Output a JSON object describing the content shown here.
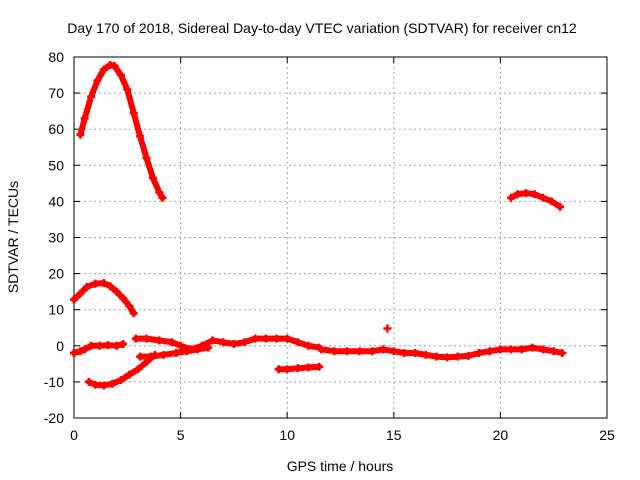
{
  "chart_data": {
    "type": "scatter",
    "title": "Day 170 of 2018, Sidereal Day-to-day VTEC variation (SDTVAR) for receiver cn12",
    "xlabel": "GPS time / hours",
    "ylabel": "SDTVAR / TECUs",
    "xlim": [
      0,
      25
    ],
    "ylim": [
      -20,
      80
    ],
    "xticks": [
      0,
      5,
      10,
      15,
      20,
      25
    ],
    "yticks": [
      -20,
      -10,
      0,
      10,
      20,
      30,
      40,
      50,
      60,
      70,
      80
    ],
    "grid": true,
    "marker_color": "#ff0000",
    "series": [
      {
        "name": "arc-high-peak",
        "points": [
          [
            0.3,
            58.5
          ],
          [
            0.5,
            63
          ],
          [
            0.8,
            69
          ],
          [
            1.1,
            73.5
          ],
          [
            1.4,
            76.5
          ],
          [
            1.7,
            77.8
          ],
          [
            1.9,
            77.5
          ],
          [
            2.2,
            75
          ],
          [
            2.5,
            71
          ],
          [
            2.8,
            64.5
          ],
          [
            3.1,
            58
          ],
          [
            3.4,
            52
          ],
          [
            3.7,
            46.5
          ],
          [
            4.0,
            42.5
          ],
          [
            4.15,
            41
          ]
        ]
      },
      {
        "name": "arc-morning-mid",
        "points": [
          [
            0.0,
            12.8
          ],
          [
            0.3,
            14.5
          ],
          [
            0.6,
            16.3
          ],
          [
            1.0,
            17.2
          ],
          [
            1.4,
            17.4
          ],
          [
            1.7,
            16.5
          ],
          [
            2.0,
            15
          ],
          [
            2.3,
            13.2
          ],
          [
            2.6,
            11
          ],
          [
            2.8,
            9
          ]
        ]
      },
      {
        "name": "arc-morning-zero",
        "points": [
          [
            0.0,
            -2
          ],
          [
            0.3,
            -1.5
          ],
          [
            0.5,
            -1
          ],
          [
            0.8,
            0
          ],
          [
            1.2,
            0
          ],
          [
            1.6,
            0.2
          ],
          [
            2.0,
            0
          ],
          [
            2.3,
            0.5
          ]
        ]
      },
      {
        "name": "arc-morning-neg",
        "points": [
          [
            0.7,
            -10
          ],
          [
            1.0,
            -10.8
          ],
          [
            1.4,
            -11
          ],
          [
            1.8,
            -10.5
          ],
          [
            2.2,
            -9.5
          ],
          [
            2.6,
            -8
          ],
          [
            3.0,
            -6.5
          ],
          [
            3.4,
            -4.5
          ],
          [
            3.8,
            -2.5
          ]
        ]
      },
      {
        "name": "arc-mid-zero",
        "points": [
          [
            2.9,
            2
          ],
          [
            3.4,
            2
          ],
          [
            4.0,
            1.5
          ],
          [
            4.6,
            1
          ],
          [
            5.0,
            0
          ],
          [
            5.5,
            -1
          ],
          [
            6.0,
            0
          ],
          [
            6.5,
            1.5
          ],
          [
            7.0,
            1
          ],
          [
            7.5,
            0.5
          ],
          [
            8.0,
            1
          ],
          [
            8.5,
            2
          ],
          [
            9.0,
            2
          ],
          [
            9.5,
            2
          ],
          [
            10.0,
            2
          ],
          [
            10.5,
            1
          ],
          [
            11.0,
            0
          ],
          [
            11.5,
            -0.5
          ]
        ]
      },
      {
        "name": "arc-mid-lower",
        "points": [
          [
            3.1,
            -3
          ],
          [
            3.6,
            -3
          ],
          [
            4.2,
            -2.5
          ],
          [
            4.8,
            -2
          ],
          [
            5.3,
            -1.5
          ],
          [
            5.8,
            -1
          ],
          [
            6.3,
            -0.5
          ]
        ]
      },
      {
        "name": "arc-late-zero",
        "points": [
          [
            11.6,
            -1
          ],
          [
            12.2,
            -1.5
          ],
          [
            12.8,
            -1.5
          ],
          [
            13.4,
            -1.5
          ],
          [
            14.0,
            -1.5
          ],
          [
            14.5,
            -1
          ],
          [
            15.0,
            -1.5
          ],
          [
            15.5,
            -2
          ],
          [
            16.0,
            -2
          ],
          [
            16.5,
            -2.5
          ],
          [
            17.0,
            -3
          ],
          [
            17.5,
            -3.2
          ],
          [
            18.0,
            -3
          ],
          [
            18.5,
            -2.8
          ],
          [
            19.0,
            -2
          ],
          [
            19.5,
            -1.5
          ],
          [
            20.0,
            -1
          ],
          [
            20.5,
            -1
          ],
          [
            21.0,
            -1
          ],
          [
            21.5,
            -0.5
          ],
          [
            22.0,
            -1
          ],
          [
            22.5,
            -1.5
          ],
          [
            22.9,
            -2
          ]
        ]
      },
      {
        "name": "arc-noon-neg",
        "points": [
          [
            9.6,
            -6.5
          ],
          [
            10.0,
            -6.5
          ],
          [
            10.5,
            -6.2
          ],
          [
            11.0,
            -6
          ],
          [
            11.5,
            -5.8
          ]
        ]
      },
      {
        "name": "arc-evening-high",
        "points": [
          [
            20.5,
            41
          ],
          [
            20.8,
            42
          ],
          [
            21.2,
            42.3
          ],
          [
            21.6,
            42
          ],
          [
            22.0,
            41
          ],
          [
            22.4,
            40
          ],
          [
            22.8,
            38.5
          ]
        ]
      },
      {
        "name": "point-isolated",
        "points": [
          [
            14.7,
            4.8
          ]
        ]
      }
    ]
  }
}
